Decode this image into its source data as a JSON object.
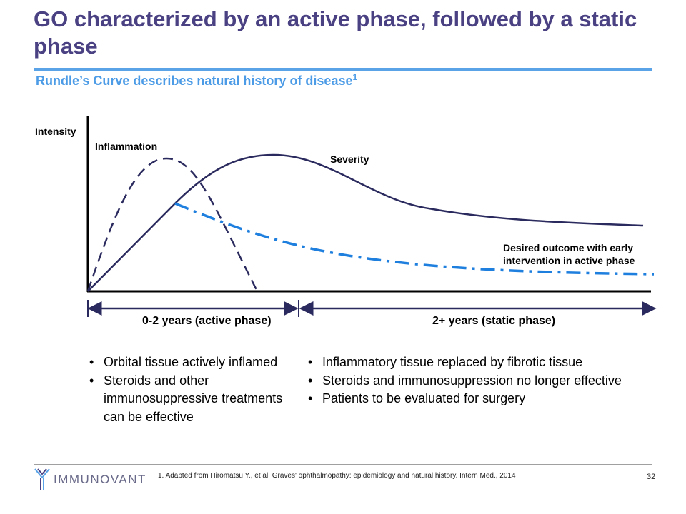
{
  "title": "GO characterized by an active phase, followed by a static phase",
  "subtitle": "Rundle’s Curve describes natural history of disease",
  "subtitle_sup": "1",
  "diagram": {
    "y_axis_label": "Intensity",
    "curves": [
      {
        "label": "Inflammation",
        "style": "dashed",
        "color": "#2b2a5e"
      },
      {
        "label": "Severity",
        "style": "solid",
        "color": "#2b2a5e"
      },
      {
        "label": "Desired outcome with early intervention in active phase",
        "label_lines": [
          "Desired outcome with early",
          "intervention in active phase"
        ],
        "style": "dash-dot",
        "color": "#1f7fde"
      }
    ],
    "phases": [
      {
        "label": "0-2 years (active phase)"
      },
      {
        "label": "2+ years (static phase)"
      }
    ]
  },
  "active_bullets": [
    "Orbital tissue actively inflamed",
    "Steroids and other immunosuppressive treatments can be effective"
  ],
  "static_bullets": [
    "Inflammatory tissue replaced by fibrotic tissue",
    "Steroids and immunosuppression no longer effective",
    "Patients to be evaluated for surgery"
  ],
  "footer": {
    "logo_text": "IMMUNOVANT",
    "reference": "1.   Adapted from Hiromatsu Y., et al. Graves' ophthalmopathy: epidemiology and natural history. Intern Med., 2014",
    "page_number": "32"
  },
  "colors": {
    "title": "#4a4183",
    "accent": "#5aa3e6",
    "curve": "#2b2a5e",
    "desired": "#1f7fde"
  }
}
